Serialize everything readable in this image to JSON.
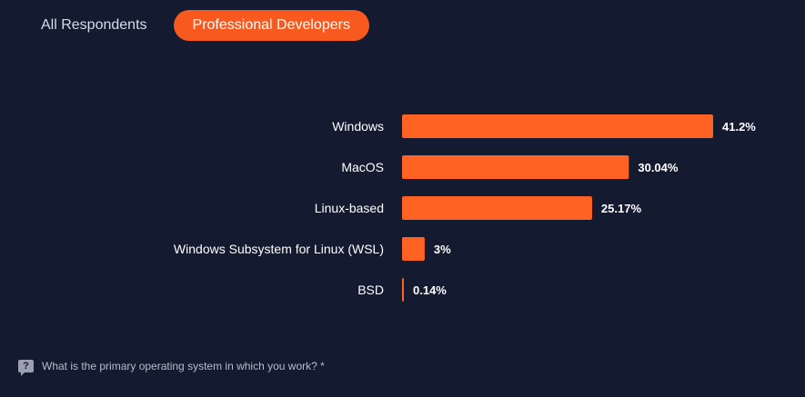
{
  "tabs": [
    {
      "label": "All Respondents",
      "active": false
    },
    {
      "label": "Professional Developers",
      "active": true
    }
  ],
  "question": {
    "icon": "question-icon",
    "text": "What is the primary operating system in which you work? *"
  },
  "colors": {
    "background": "#141a30",
    "accent": "#f7591f",
    "bar": "#ff6222"
  },
  "chart_data": {
    "type": "bar",
    "orientation": "horizontal",
    "categories": [
      "Windows",
      "MacOS",
      "Linux-based",
      "Windows Subsystem for Linux (WSL)",
      "BSD"
    ],
    "values": [
      41.2,
      30.04,
      25.17,
      3,
      0.14
    ],
    "value_labels": [
      "41.2%",
      "30.04%",
      "25.17%",
      "3%",
      "0.14%"
    ],
    "title": "",
    "xlabel": "",
    "ylabel": "",
    "grid": false,
    "legend": "none"
  }
}
